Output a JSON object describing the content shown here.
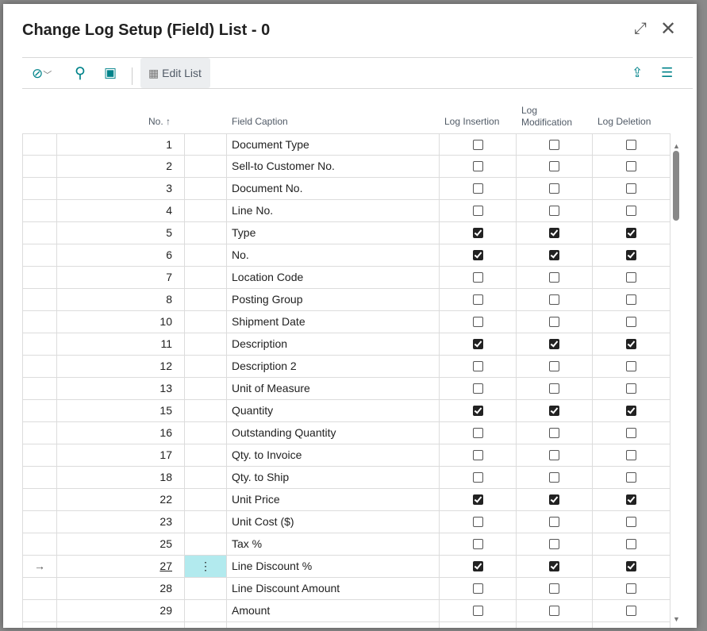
{
  "window": {
    "title": "Change Log Setup (Field) List - 0"
  },
  "toolbar": {
    "edit_list_label": "Edit List",
    "icons": [
      "copilot-icon",
      "search-icon",
      "filter-pane-icon",
      "share-icon",
      "list-view-icon"
    ]
  },
  "columns": {
    "no": "No. ↑",
    "field_caption": "Field Caption",
    "log_insertion": "Log Insertion",
    "log_modification_1": "Log",
    "log_modification_2": "Modification",
    "log_deletion": "Log Deletion"
  },
  "rows": [
    {
      "no": "1",
      "caption": "Document Type",
      "ins": false,
      "mod": false,
      "del": false
    },
    {
      "no": "2",
      "caption": "Sell-to Customer No.",
      "ins": false,
      "mod": false,
      "del": false
    },
    {
      "no": "3",
      "caption": "Document No.",
      "ins": false,
      "mod": false,
      "del": false
    },
    {
      "no": "4",
      "caption": "Line No.",
      "ins": false,
      "mod": false,
      "del": false
    },
    {
      "no": "5",
      "caption": "Type",
      "ins": true,
      "mod": true,
      "del": true
    },
    {
      "no": "6",
      "caption": "No.",
      "ins": true,
      "mod": true,
      "del": true
    },
    {
      "no": "7",
      "caption": "Location Code",
      "ins": false,
      "mod": false,
      "del": false
    },
    {
      "no": "8",
      "caption": "Posting Group",
      "ins": false,
      "mod": false,
      "del": false
    },
    {
      "no": "10",
      "caption": "Shipment Date",
      "ins": false,
      "mod": false,
      "del": false
    },
    {
      "no": "11",
      "caption": "Description",
      "ins": true,
      "mod": true,
      "del": true
    },
    {
      "no": "12",
      "caption": "Description 2",
      "ins": false,
      "mod": false,
      "del": false
    },
    {
      "no": "13",
      "caption": "Unit of Measure",
      "ins": false,
      "mod": false,
      "del": false
    },
    {
      "no": "15",
      "caption": "Quantity",
      "ins": true,
      "mod": true,
      "del": true
    },
    {
      "no": "16",
      "caption": "Outstanding Quantity",
      "ins": false,
      "mod": false,
      "del": false
    },
    {
      "no": "17",
      "caption": "Qty. to Invoice",
      "ins": false,
      "mod": false,
      "del": false
    },
    {
      "no": "18",
      "caption": "Qty. to Ship",
      "ins": false,
      "mod": false,
      "del": false
    },
    {
      "no": "22",
      "caption": "Unit Price",
      "ins": true,
      "mod": true,
      "del": true
    },
    {
      "no": "23",
      "caption": "Unit Cost ($)",
      "ins": false,
      "mod": false,
      "del": false
    },
    {
      "no": "25",
      "caption": "Tax %",
      "ins": false,
      "mod": false,
      "del": false
    },
    {
      "no": "27",
      "caption": "Line Discount %",
      "ins": true,
      "mod": true,
      "del": true,
      "selected": true
    },
    {
      "no": "28",
      "caption": "Line Discount Amount",
      "ins": false,
      "mod": false,
      "del": false
    },
    {
      "no": "29",
      "caption": "Amount",
      "ins": false,
      "mod": false,
      "del": false
    },
    {
      "no": "",
      "caption": "",
      "ins": false,
      "mod": false,
      "del": false
    }
  ]
}
